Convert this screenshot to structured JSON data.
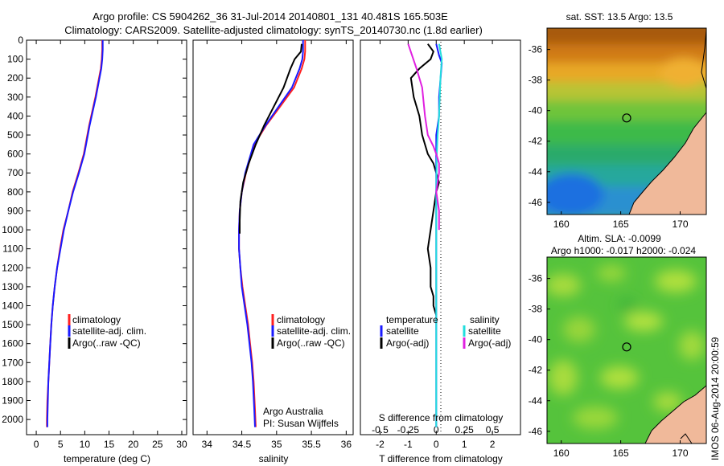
{
  "header": {
    "line1": "Argo profile: CS 5904262_36 31-Jul-2014 20140801_131 40.481S 165.503E",
    "line2": "Climatology: CARS2009. Satellite-adjusted climatology: synTS_20140730.nc (1.8d earlier)"
  },
  "side_text": "IMOS 06-Aug-2014 20:00:59",
  "colors": {
    "climatology": "#ff2020",
    "satellite_adj": "#1a1aff",
    "argo": "#000000",
    "satellite_cyan": "#22dddd",
    "argo_adj_magenta": "#e020e0",
    "land": "#f0b99a"
  },
  "chart_data": [
    {
      "type": "line",
      "panel": "temperature",
      "xlabel": "temperature (deg C)",
      "xlim": [
        -2,
        31
      ],
      "xticks": [
        0,
        5,
        10,
        15,
        20,
        25,
        30
      ],
      "ylim": [
        2080,
        0
      ],
      "yticks": [
        0,
        100,
        200,
        300,
        400,
        500,
        600,
        700,
        800,
        900,
        1000,
        1100,
        1200,
        1300,
        1400,
        1500,
        1600,
        1700,
        1800,
        1900,
        2000
      ],
      "legend": [
        "climatology",
        "satellite-adj. clim.",
        "Argo(..raw -QC)"
      ],
      "series": [
        {
          "name": "climatology",
          "color": "#ff2020",
          "x": [
            13.6,
            13.6,
            13.5,
            13.3,
            12.2,
            10.9,
            9.8,
            8.7,
            7.5,
            6.6,
            5.6,
            4.9,
            4.3,
            3.8,
            3.4,
            3.1,
            2.9,
            2.7,
            2.5,
            2.3,
            2.2,
            2.2
          ],
          "y": [
            0,
            50,
            100,
            150,
            300,
            450,
            600,
            700,
            800,
            900,
            1000,
            1100,
            1200,
            1300,
            1400,
            1500,
            1600,
            1700,
            1800,
            1900,
            2000,
            2040
          ]
        },
        {
          "name": "satellite-adj. clim.",
          "color": "#1a1aff",
          "x": [
            13.7,
            13.7,
            13.6,
            13.4,
            12.3,
            11.0,
            9.9,
            8.8,
            7.6,
            6.6,
            5.7,
            5.0,
            4.3,
            3.8,
            3.4,
            3.1,
            2.9,
            2.7,
            2.5,
            2.4,
            2.3,
            2.3
          ],
          "y": [
            0,
            50,
            100,
            150,
            300,
            450,
            600,
            700,
            800,
            900,
            1000,
            1100,
            1200,
            1300,
            1400,
            1500,
            1600,
            1700,
            1800,
            1900,
            2000,
            2040
          ]
        }
      ]
    },
    {
      "type": "line",
      "panel": "salinity",
      "xlabel": "salinity",
      "text_note": [
        "Argo Australia",
        "PI: Susan Wijffels"
      ],
      "xlim": [
        33.8,
        36.1
      ],
      "xticks": [
        34,
        34.5,
        35,
        35.5,
        36
      ],
      "xticklabels": [
        "34",
        "34.5",
        "35",
        "35.5",
        "36"
      ],
      "ylim": [
        2080,
        0
      ],
      "legend": [
        "climatology",
        "satellite-adj. clim.",
        "Argo(..raw -QC)"
      ],
      "series": [
        {
          "name": "climatology",
          "color": "#ff2020",
          "x": [
            35.41,
            35.41,
            35.4,
            35.36,
            35.25,
            35.05,
            34.85,
            34.68,
            34.56,
            34.5,
            34.47,
            34.46,
            34.46,
            34.48,
            34.51,
            34.55,
            34.59,
            34.62,
            34.65,
            34.67,
            34.69,
            34.7
          ],
          "y": [
            0,
            60,
            100,
            150,
            250,
            350,
            450,
            550,
            700,
            800,
            900,
            1000,
            1100,
            1200,
            1300,
            1400,
            1500,
            1600,
            1700,
            1800,
            1950,
            2040
          ]
        },
        {
          "name": "satellite-adj. clim.",
          "color": "#1a1aff",
          "x": [
            35.38,
            35.38,
            35.37,
            35.33,
            35.22,
            35.03,
            34.84,
            34.67,
            34.55,
            34.5,
            34.47,
            34.46,
            34.46,
            34.48,
            34.5,
            34.54,
            34.58,
            34.61,
            34.64,
            34.66,
            34.68,
            34.69
          ],
          "y": [
            0,
            60,
            100,
            150,
            250,
            350,
            450,
            550,
            700,
            800,
            900,
            1000,
            1100,
            1200,
            1300,
            1400,
            1500,
            1600,
            1700,
            1800,
            1950,
            2040
          ]
        },
        {
          "name": "Argo(..raw -QC)",
          "color": "#000000",
          "x": [
            35.36,
            35.35,
            35.26,
            35.2,
            35.1,
            34.96,
            34.82,
            34.7,
            34.6,
            34.52,
            34.48,
            34.47,
            34.47
          ],
          "y": [
            20,
            60,
            100,
            150,
            250,
            350,
            450,
            550,
            650,
            750,
            850,
            950,
            1020
          ]
        }
      ]
    },
    {
      "type": "line",
      "panel": "difference",
      "xlabel": "T difference from climatology",
      "xlabel_top": "S difference from climatology",
      "xlim": [
        -2.7,
        3.0
      ],
      "xticks_T": [
        -2,
        -1,
        0,
        1,
        2
      ],
      "xticks_S": [
        -0.5,
        -0.25,
        0,
        0.25,
        0.5
      ],
      "xticklabels_S": [
        "-0.5",
        "-0.25",
        "0",
        "0.25",
        "0.5"
      ],
      "ylim": [
        2080,
        0
      ],
      "legend": [
        "temperature",
        "satellite",
        "Argo(-adj)",
        "salinity",
        "satellite",
        "Argo(-adj)"
      ],
      "series": [
        {
          "name": "Argo(-adj)",
          "color": "#000000",
          "x": [
            -0.3,
            -0.1,
            -0.2,
            -0.6,
            -0.9,
            -0.8,
            -0.6,
            -0.5,
            -0.3,
            -0.1,
            0,
            0.1,
            0,
            -0.1,
            -0.2,
            -0.3,
            -0.2,
            -0.2,
            -0.1,
            -0.1,
            0
          ],
          "y": [
            20,
            60,
            100,
            150,
            200,
            300,
            400,
            500,
            600,
            650,
            700,
            750,
            800,
            900,
            1000,
            1100,
            1200,
            1300,
            1350,
            1400,
            1450
          ]
        },
        {
          "name": "satellite",
          "color": "#1a1aff",
          "x": [
            0,
            0.1,
            0.2,
            0.1,
            0.1,
            0,
            0,
            0,
            0,
            0,
            0,
            0
          ],
          "y": [
            20,
            80,
            120,
            300,
            400,
            500,
            700,
            900,
            1200,
            1500,
            1800,
            2040
          ]
        },
        {
          "name": "salinity satellite",
          "color": "#22dddd",
          "x": [
            0.1,
            0.2,
            0.15,
            0.1,
            0.05,
            0.02,
            0,
            0,
            0,
            0,
            0
          ],
          "y": [
            20,
            100,
            200,
            400,
            500,
            600,
            800,
            1000,
            1400,
            1800,
            2040
          ]
        },
        {
          "name": "salinity Argo(-adj)",
          "color": "#e020e0",
          "x": [
            -1.0,
            -0.7,
            -0.5,
            -0.4,
            -0.3,
            -0.1,
            0,
            0.1,
            0.1,
            0,
            0.1,
            0.1
          ],
          "y": [
            20,
            150,
            250,
            400,
            500,
            560,
            600,
            650,
            700,
            800,
            900,
            1000
          ]
        }
      ]
    },
    {
      "type": "heatmap",
      "panel": "sat-sst-map",
      "title": "sat. SST: 13.5  Argo: 13.5",
      "xticks": [
        160,
        165,
        170
      ],
      "yticks": [
        -36,
        -38,
        -40,
        -42,
        -44,
        -46
      ],
      "xlim": [
        158.8,
        172.2
      ],
      "ylim": [
        -46.8,
        -34.6
      ],
      "marker": {
        "lon": 165.5,
        "lat": -40.48
      }
    },
    {
      "type": "heatmap",
      "panel": "altim-sla-map",
      "title": "Altim. SLA: -0.0099",
      "subtitle": "Argo h1000: -0.017  h2000: -0.024",
      "xticks": [
        160,
        165,
        170
      ],
      "yticks": [
        -36,
        -38,
        -40,
        -42,
        -44,
        -46
      ],
      "xlim": [
        158.8,
        172.2
      ],
      "ylim": [
        -46.8,
        -34.6
      ],
      "marker": {
        "lon": 165.5,
        "lat": -40.48
      }
    }
  ]
}
